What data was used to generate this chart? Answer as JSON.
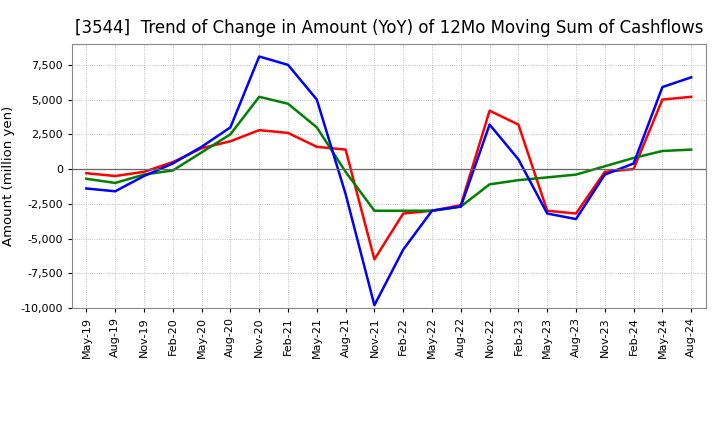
{
  "title": "[3544]  Trend of Change in Amount (YoY) of 12Mo Moving Sum of Cashflows",
  "ylabel": "Amount (million yen)",
  "x_labels": [
    "May-19",
    "Aug-19",
    "Nov-19",
    "Feb-20",
    "May-20",
    "Aug-20",
    "Nov-20",
    "Feb-21",
    "May-21",
    "Aug-21",
    "Nov-21",
    "Feb-22",
    "May-22",
    "Aug-22",
    "Nov-22",
    "Feb-23",
    "May-23",
    "Aug-23",
    "Nov-23",
    "Feb-24",
    "May-24",
    "Aug-24"
  ],
  "operating": [
    -300,
    -500,
    -200,
    500,
    1500,
    2000,
    2800,
    2600,
    1600,
    1400,
    -6500,
    -3200,
    -3000,
    -2600,
    4200,
    3200,
    -3000,
    -3200,
    -200,
    0,
    5000,
    5200
  ],
  "investing": [
    -700,
    -1000,
    -400,
    -100,
    1200,
    2500,
    5200,
    4700,
    3000,
    -200,
    -3000,
    -3000,
    -3000,
    -2700,
    -1100,
    -800,
    -600,
    -400,
    200,
    800,
    1300,
    1400
  ],
  "free": [
    -1400,
    -1600,
    -500,
    400,
    1600,
    3000,
    8100,
    7500,
    5000,
    -1800,
    -9800,
    -5800,
    -3000,
    -2700,
    3200,
    700,
    -3200,
    -3600,
    -400,
    400,
    5900,
    6600
  ],
  "ylim": [
    -10000,
    9000
  ],
  "yticks": [
    -10000,
    -7500,
    -5000,
    -2500,
    0,
    2500,
    5000,
    7500
  ],
  "line_colors": {
    "operating": "#ff0000",
    "investing": "#008000",
    "free": "#0000ff"
  },
  "background_color": "#ffffff",
  "grid_color": "#b0b0b0",
  "title_fontsize": 12,
  "axis_fontsize": 9.5,
  "tick_fontsize": 8
}
